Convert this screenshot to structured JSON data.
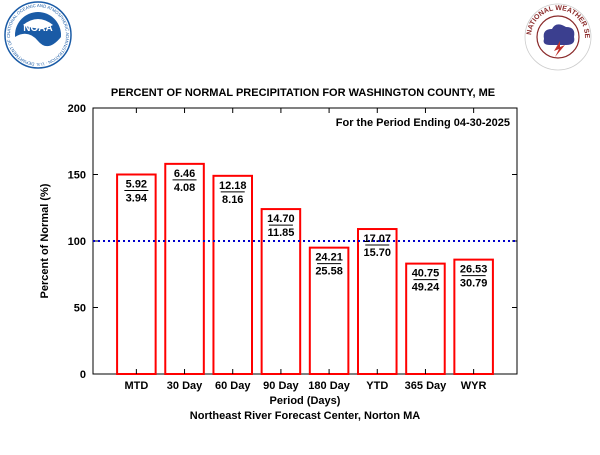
{
  "logos": {
    "noaa": {
      "text": "NOAA",
      "ring_text": "NATIONAL OCEANIC AND ATMOSPHERIC ADMINISTRATION · U.S. DEPARTMENT OF COMMERCE",
      "color": "#1a5ba6"
    },
    "nws": {
      "ring_text": "NATIONAL WEATHER SERVICE",
      "color": "#8a2a2a"
    }
  },
  "chart_data": {
    "type": "bar",
    "title": "PERCENT OF NORMAL PRECIPITATION FOR WASHINGTON COUNTY, ME",
    "subtitle": "For the Period Ending 04-30-2025",
    "xlabel": "Period (Days)",
    "ylabel": "Percent of Normal (%)",
    "footer": "Northeast River Forecast Center, Norton MA",
    "ylim": [
      0,
      200
    ],
    "yticks": [
      "0",
      "50",
      "100",
      "150",
      "200"
    ],
    "reference_line": {
      "value": 100,
      "color": "#0000cc",
      "style": "dotted"
    },
    "bar_color": "#ff0000",
    "categories": [
      "MTD",
      "30 Day",
      "60 Day",
      "90 Day",
      "180 Day",
      "YTD",
      "365 Day",
      "WYR"
    ],
    "values": [
      150,
      158,
      149,
      124,
      95,
      109,
      83,
      86
    ],
    "observed": [
      "5.92",
      "6.46",
      "12.18",
      "14.70",
      "24.21",
      "17.07",
      "40.75",
      "26.53"
    ],
    "normal": [
      "3.94",
      "4.08",
      "8.16",
      "11.85",
      "25.58",
      "15.70",
      "49.24",
      "30.79"
    ]
  }
}
